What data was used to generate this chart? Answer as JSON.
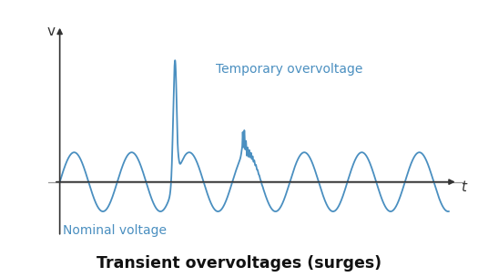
{
  "title": "Transient overvoltages (surges)",
  "line_color": "#4a8fc0",
  "axis_color": "#333333",
  "text_color": "#4a8fc0",
  "label_v": "v",
  "label_t": "t",
  "label_nominal": "Nominal voltage",
  "label_temp": "Temporary overvoltage",
  "background_color": "#ffffff",
  "title_fontsize": 12.5,
  "annotation_fontsize": 10,
  "xline_color": "#999999"
}
